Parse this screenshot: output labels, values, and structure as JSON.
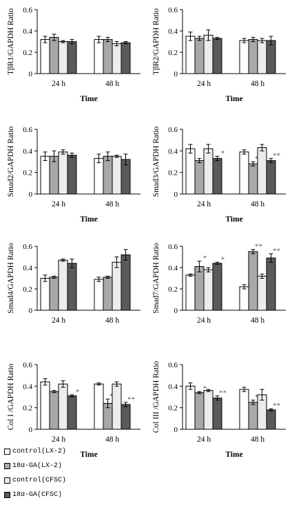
{
  "legend": [
    {
      "label": "control(LX-2)",
      "color": "#ffffff"
    },
    {
      "label": "18α-GA(LX-2)",
      "color": "#a8a8a8"
    },
    {
      "label": "control(CFSC)",
      "color": "#ececec"
    },
    {
      "label": "18α-GA(CFSC)",
      "color": "#5a5a5a"
    }
  ],
  "chart_data": [
    {
      "type": "bar",
      "title": "",
      "xlabel": "Time",
      "ylabel": "TβR1/GAPDH Ratio",
      "categories": [
        "24 h",
        "48 h"
      ],
      "ylim": [
        0,
        0.6
      ],
      "yticks": [
        "0",
        "0.2",
        "0.4",
        "0.6"
      ],
      "series": [
        {
          "name": "control(LX-2)",
          "values": [
            0.32,
            0.32
          ],
          "errors": [
            0.03,
            0.03
          ],
          "sig": [
            "",
            ""
          ]
        },
        {
          "name": "18α-GA(LX-2)",
          "values": [
            0.34,
            0.32
          ],
          "errors": [
            0.03,
            0.02
          ],
          "sig": [
            "",
            ""
          ]
        },
        {
          "name": "control(CFSC)",
          "values": [
            0.3,
            0.28
          ],
          "errors": [
            0.01,
            0.02
          ],
          "sig": [
            "",
            ""
          ]
        },
        {
          "name": "18α-GA(CFSC)",
          "values": [
            0.3,
            0.29
          ],
          "errors": [
            0.02,
            0.01
          ],
          "sig": [
            "",
            ""
          ]
        }
      ]
    },
    {
      "type": "bar",
      "title": "",
      "xlabel": "Time",
      "ylabel": "TβR2/GAPDH Ratio",
      "categories": [
        "24 h",
        "48 h"
      ],
      "ylim": [
        0,
        0.6
      ],
      "yticks": [
        "0",
        "0.2",
        "0.4",
        "0.6"
      ],
      "series": [
        {
          "name": "control(LX-2)",
          "values": [
            0.35,
            0.31
          ],
          "errors": [
            0.04,
            0.02
          ],
          "sig": [
            "",
            ""
          ]
        },
        {
          "name": "18α-GA(LX-2)",
          "values": [
            0.33,
            0.32
          ],
          "errors": [
            0.02,
            0.02
          ],
          "sig": [
            "",
            ""
          ]
        },
        {
          "name": "control(CFSC)",
          "values": [
            0.36,
            0.31
          ],
          "errors": [
            0.05,
            0.02
          ],
          "sig": [
            "",
            ""
          ]
        },
        {
          "name": "18α-GA(CFSC)",
          "values": [
            0.33,
            0.31
          ],
          "errors": [
            0.01,
            0.04
          ],
          "sig": [
            "",
            ""
          ]
        }
      ]
    },
    {
      "type": "bar",
      "title": "",
      "xlabel": "Time",
      "ylabel": "Smad2/GAPDH Ratio",
      "categories": [
        "24 h",
        "48 h"
      ],
      "ylim": [
        0,
        0.6
      ],
      "yticks": [
        "0",
        "0.2",
        "0.4",
        "0.6"
      ],
      "series": [
        {
          "name": "control(LX-2)",
          "values": [
            0.35,
            0.33
          ],
          "errors": [
            0.04,
            0.04
          ],
          "sig": [
            "",
            ""
          ]
        },
        {
          "name": "18α-GA(LX-2)",
          "values": [
            0.35,
            0.35
          ],
          "errors": [
            0.05,
            0.04
          ],
          "sig": [
            "",
            ""
          ]
        },
        {
          "name": "control(CFSC)",
          "values": [
            0.39,
            0.35
          ],
          "errors": [
            0.02,
            0.01
          ],
          "sig": [
            "",
            ""
          ]
        },
        {
          "name": "18α-GA(CFSC)",
          "values": [
            0.36,
            0.32
          ],
          "errors": [
            0.02,
            0.05
          ],
          "sig": [
            "",
            ""
          ]
        }
      ]
    },
    {
      "type": "bar",
      "title": "",
      "xlabel": "Time",
      "ylabel": "Smad3/GAPDH Ratio",
      "categories": [
        "24 h",
        "48 h"
      ],
      "ylim": [
        0,
        0.6
      ],
      "yticks": [
        "0",
        "0.2",
        "0.4",
        "0.6"
      ],
      "series": [
        {
          "name": "control(LX-2)",
          "values": [
            0.42,
            0.39
          ],
          "errors": [
            0.04,
            0.02
          ],
          "sig": [
            "",
            ""
          ]
        },
        {
          "name": "18α-GA(LX-2)",
          "values": [
            0.31,
            0.28
          ],
          "errors": [
            0.02,
            0.02
          ],
          "sig": [
            "*",
            "**"
          ]
        },
        {
          "name": "control(CFSC)",
          "values": [
            0.42,
            0.43
          ],
          "errors": [
            0.04,
            0.03
          ],
          "sig": [
            "",
            ""
          ]
        },
        {
          "name": "18α-GA(CFSC)",
          "values": [
            0.33,
            0.31
          ],
          "errors": [
            0.02,
            0.02
          ],
          "sig": [
            "*",
            "**"
          ]
        }
      ]
    },
    {
      "type": "bar",
      "title": "",
      "xlabel": "",
      "ylabel": "Smad4/GAPDH Ratio",
      "categories": [
        "24 h",
        "48 h"
      ],
      "ylim": [
        0,
        0.6
      ],
      "yticks": [
        "0",
        "0.2",
        "0.4",
        "0.6"
      ],
      "series": [
        {
          "name": "control(LX-2)",
          "values": [
            0.3,
            0.29
          ],
          "errors": [
            0.03,
            0.02
          ],
          "sig": [
            "",
            ""
          ]
        },
        {
          "name": "18α-GA(LX-2)",
          "values": [
            0.31,
            0.31
          ],
          "errors": [
            0.01,
            0.01
          ],
          "sig": [
            "",
            ""
          ]
        },
        {
          "name": "control(CFSC)",
          "values": [
            0.47,
            0.45
          ],
          "errors": [
            0.01,
            0.05
          ],
          "sig": [
            "",
            ""
          ]
        },
        {
          "name": "18α-GA(CFSC)",
          "values": [
            0.44,
            0.52
          ],
          "errors": [
            0.04,
            0.05
          ],
          "sig": [
            "",
            ""
          ]
        }
      ]
    },
    {
      "type": "bar",
      "title": "",
      "xlabel": "",
      "ylabel": "Smad7/GAPDH Ratio",
      "categories": [
        "24 h",
        "48 h"
      ],
      "ylim": [
        0,
        0.6
      ],
      "yticks": [
        "0",
        "0.2",
        "0.4",
        "0.6"
      ],
      "series": [
        {
          "name": "control(LX-2)",
          "values": [
            0.33,
            0.22
          ],
          "errors": [
            0.01,
            0.02
          ],
          "sig": [
            "",
            ""
          ]
        },
        {
          "name": "18α-GA(LX-2)",
          "values": [
            0.41,
            0.55
          ],
          "errors": [
            0.05,
            0.02
          ],
          "sig": [
            "*",
            "**"
          ]
        },
        {
          "name": "control(CFSC)",
          "values": [
            0.38,
            0.32
          ],
          "errors": [
            0.02,
            0.02
          ],
          "sig": [
            "",
            ""
          ]
        },
        {
          "name": "18α-GA(CFSC)",
          "values": [
            0.44,
            0.49
          ],
          "errors": [
            0.01,
            0.04
          ],
          "sig": [
            "*",
            "**"
          ]
        }
      ]
    },
    {
      "type": "bar",
      "title": "",
      "xlabel": "Time",
      "ylabel": "Col I /GAPDH Ratio",
      "categories": [
        "24 h",
        "48 h"
      ],
      "ylim": [
        0,
        0.6
      ],
      "yticks": [
        "0",
        "0.2",
        "0.4",
        "0.6"
      ],
      "series": [
        {
          "name": "control(LX-2)",
          "values": [
            0.44,
            0.42
          ],
          "errors": [
            0.03,
            0.01
          ],
          "sig": [
            "",
            ""
          ]
        },
        {
          "name": "18α-GA(LX-2)",
          "values": [
            0.35,
            0.24
          ],
          "errors": [
            0.01,
            0.04
          ],
          "sig": [
            "*",
            "**"
          ]
        },
        {
          "name": "control(CFSC)",
          "values": [
            0.42,
            0.42
          ],
          "errors": [
            0.03,
            0.02
          ],
          "sig": [
            "",
            ""
          ]
        },
        {
          "name": "18α-GA(CFSC)",
          "values": [
            0.31,
            0.23
          ],
          "errors": [
            0.01,
            0.02
          ],
          "sig": [
            "*",
            "**"
          ]
        }
      ]
    },
    {
      "type": "bar",
      "title": "",
      "xlabel": "Time",
      "ylabel": "Col III /GAPDH Ratio",
      "categories": [
        "24 h",
        "48 h"
      ],
      "ylim": [
        0,
        0.6
      ],
      "yticks": [
        "0",
        "0.2",
        "0.4",
        "0.6"
      ],
      "series": [
        {
          "name": "control(LX-2)",
          "values": [
            0.4,
            0.37
          ],
          "errors": [
            0.03,
            0.02
          ],
          "sig": [
            "",
            ""
          ]
        },
        {
          "name": "18α-GA(LX-2)",
          "values": [
            0.34,
            0.25
          ],
          "errors": [
            0.01,
            0.02
          ],
          "sig": [
            "*",
            "**"
          ]
        },
        {
          "name": "control(CFSC)",
          "values": [
            0.36,
            0.32
          ],
          "errors": [
            0.01,
            0.05
          ],
          "sig": [
            "",
            ""
          ]
        },
        {
          "name": "18α-GA(CFSC)",
          "values": [
            0.29,
            0.18
          ],
          "errors": [
            0.02,
            0.01
          ],
          "sig": [
            "**",
            "**"
          ]
        }
      ]
    }
  ]
}
